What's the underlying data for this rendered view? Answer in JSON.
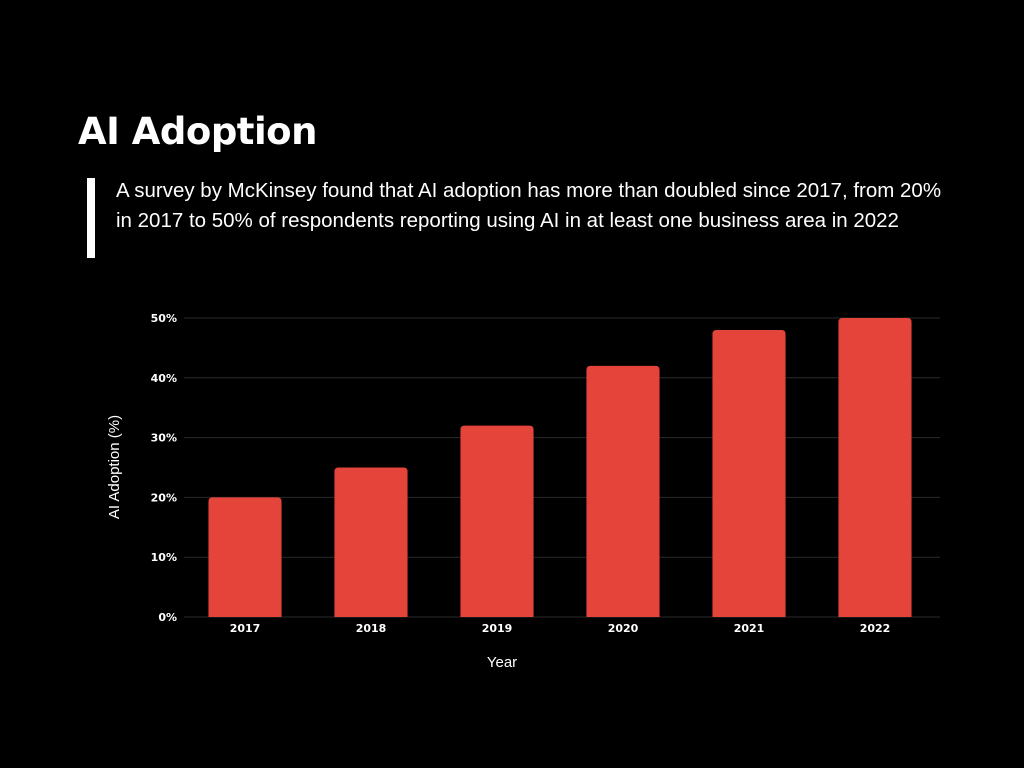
{
  "header": {
    "title": "AI Adoption",
    "description": "A survey by McKinsey found that AI adoption has more than doubled since 2017, from 20% in 2017 to 50% of respondents reporting using AI in at least one business area in 2022"
  },
  "colors": {
    "background": "#000000",
    "bar": "#E5443A",
    "gridline": "#2a2a2a",
    "text": "#ffffff"
  },
  "chart_data": {
    "type": "bar",
    "categories": [
      "2017",
      "2018",
      "2019",
      "2020",
      "2021",
      "2022"
    ],
    "values": [
      20,
      25,
      32,
      42,
      48,
      50
    ],
    "title": "",
    "xlabel": "Year",
    "ylabel": "AI Adoption (%)",
    "ylim": [
      0,
      50
    ],
    "yticks": [
      0,
      10,
      20,
      30,
      40,
      50
    ],
    "ytick_labels": [
      "0%",
      "10%",
      "20%",
      "30%",
      "40%",
      "50%"
    ],
    "grid": true,
    "legend": "none"
  }
}
